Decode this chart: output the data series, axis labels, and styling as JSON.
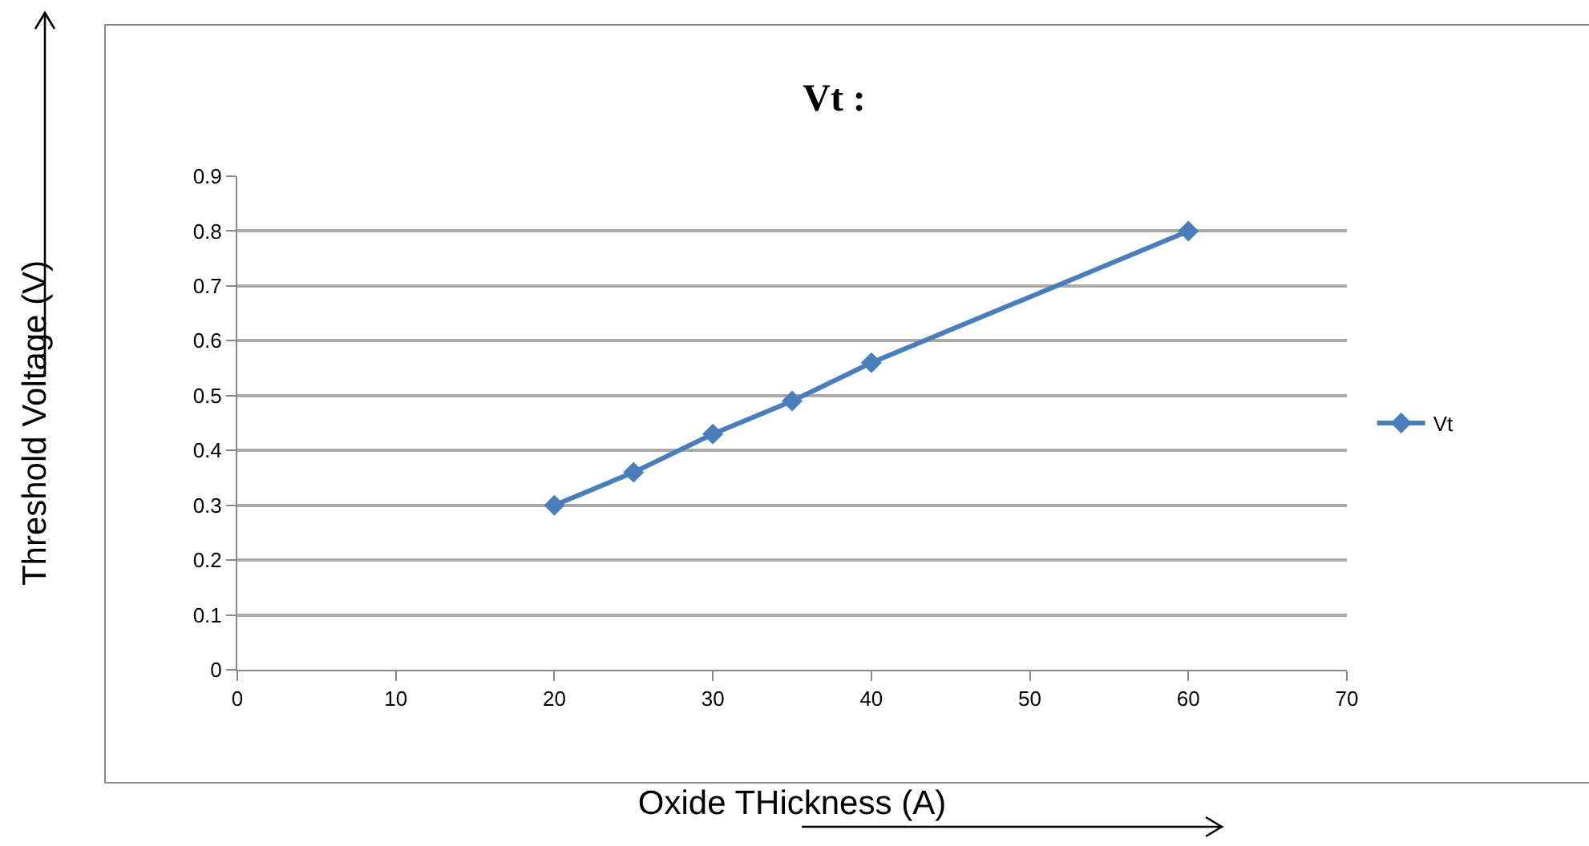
{
  "chart_data": {
    "type": "line",
    "title": "Vt :",
    "xlabel": "Oxide THickness (A)",
    "ylabel": "Threshold Voltage (V)",
    "x": [
      20,
      25,
      30,
      35,
      40,
      60
    ],
    "series": [
      {
        "name": "Vt",
        "color": "#4a7ebb",
        "values": [
          0.3,
          0.36,
          0.43,
          0.49,
          0.56,
          0.8
        ]
      }
    ],
    "xlim": [
      0,
      70
    ],
    "xticks": [
      0,
      10,
      20,
      30,
      40,
      50,
      60,
      70
    ],
    "ylim": [
      0,
      0.9
    ],
    "yticks": [
      0,
      0.1,
      0.2,
      0.3,
      0.4,
      0.5,
      0.6,
      0.7,
      0.8,
      0.9
    ],
    "grid": "y",
    "legend": "right",
    "marker": "diamond",
    "line_style": "solid"
  }
}
